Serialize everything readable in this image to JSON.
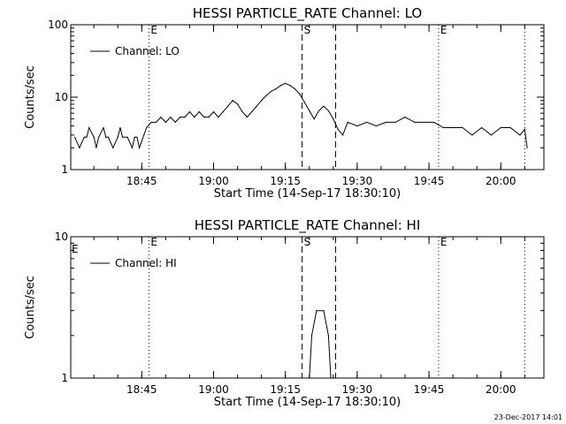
{
  "chart_data": [
    {
      "type": "line",
      "title": "HESSI PARTICLE_RATE Channel: LO",
      "xlabel": "Start Time (14-Sep-17 18:30:10)",
      "ylabel": "Counts/sec",
      "yscale": "log",
      "ylim": [
        1,
        100
      ],
      "xlim": [
        "18:30:10",
        "20:09:00"
      ],
      "xticks": [
        "18:45",
        "19:00",
        "19:15",
        "19:30",
        "19:45",
        "20:00"
      ],
      "yticks": [
        "1",
        "10",
        "100"
      ],
      "legend": "top-left",
      "series": [
        {
          "name": "Channel: LO",
          "x": [
            "18:31:00",
            "18:32:00",
            "18:33:00",
            "18:33:30",
            "18:34:00",
            "18:35:00",
            "18:35:30",
            "18:36:00",
            "18:37:00",
            "18:37:30",
            "18:38:00",
            "18:39:00",
            "18:40:00",
            "18:40:30",
            "18:41:00",
            "18:42:00",
            "18:43:00",
            "18:43:30",
            "18:44:00",
            "18:44:30",
            "18:46:00",
            "18:47:00",
            "18:48:00",
            "18:49:00",
            "18:50:00",
            "18:51:00",
            "18:52:00",
            "18:53:00",
            "18:54:00",
            "18:55:00",
            "18:56:00",
            "18:57:00",
            "18:58:00",
            "18:59:00",
            "19:00:00",
            "19:01:00",
            "19:02:00",
            "19:03:00",
            "19:04:00",
            "19:05:00",
            "19:06:00",
            "19:07:00",
            "19:08:00",
            "19:09:00",
            "19:10:00",
            "19:11:00",
            "19:12:00",
            "19:13:00",
            "19:14:00",
            "19:15:00",
            "19:16:00",
            "19:17:00",
            "19:18:00",
            "19:19:00",
            "19:20:00",
            "19:21:00",
            "19:22:00",
            "19:23:00",
            "19:24:00",
            "19:25:00",
            "19:26:00",
            "19:27:00",
            "19:28:00",
            "19:30:00",
            "19:32:00",
            "19:34:00",
            "19:36:00",
            "19:38:00",
            "19:40:00",
            "19:42:00",
            "19:44:00",
            "19:46:00",
            "19:48:00",
            "19:50:00",
            "19:52:00",
            "19:54:00",
            "19:56:00",
            "19:58:00",
            "20:00:00",
            "20:02:00",
            "20:04:00",
            "20:05:00",
            "20:05:30"
          ],
          "y": [
            2.8,
            2.0,
            2.8,
            2.8,
            3.8,
            2.8,
            2.0,
            2.8,
            3.8,
            2.8,
            2.8,
            2.0,
            2.8,
            3.8,
            2.8,
            2.8,
            2.0,
            2.8,
            2.8,
            2.0,
            3.8,
            4.5,
            4.5,
            5.3,
            4.5,
            5.3,
            4.5,
            5.3,
            5.3,
            6.3,
            5.3,
            6.3,
            5.3,
            5.3,
            6.3,
            5.3,
            6.3,
            7.5,
            9.0,
            8.0,
            6.3,
            5.3,
            6.3,
            7.5,
            9.0,
            10.5,
            12.0,
            13.0,
            14.5,
            15.5,
            14.5,
            13.0,
            11.0,
            8.5,
            6.5,
            5.0,
            6.5,
            7.5,
            6.5,
            5.0,
            3.6,
            3.0,
            4.5,
            4.0,
            4.5,
            4.0,
            4.5,
            4.5,
            5.3,
            4.5,
            4.5,
            4.5,
            3.8,
            3.8,
            3.8,
            3.0,
            3.8,
            3.0,
            3.8,
            3.8,
            3.0,
            3.6,
            2.0
          ]
        }
      ],
      "markers": [
        {
          "x": "18:46:30",
          "label": "E",
          "style": "dotted"
        },
        {
          "x": "19:18:30",
          "label": "S",
          "style": "dashed"
        },
        {
          "x": "19:25:30",
          "label": "",
          "style": "dashed"
        },
        {
          "x": "19:47:00",
          "label": "E",
          "style": "dotted"
        },
        {
          "x": "20:05:00",
          "label": "",
          "style": "dotted"
        }
      ]
    },
    {
      "type": "line",
      "title": "HESSI PARTICLE_RATE Channel: HI",
      "xlabel": "Start Time (14-Sep-17 18:30:10)",
      "ylabel": "Counts/sec",
      "yscale": "log",
      "ylim": [
        1,
        10
      ],
      "xlim": [
        "18:30:10",
        "20:09:00"
      ],
      "xticks": [
        "18:45",
        "19:00",
        "19:15",
        "19:30",
        "19:45",
        "20:00"
      ],
      "yticks": [
        "1",
        "10"
      ],
      "legend": "top-left",
      "series": [
        {
          "name": "Channel: HI",
          "x": [
            "19:20:00",
            "19:20:30",
            "19:21:30",
            "19:23:00",
            "19:24:00",
            "19:24:30"
          ],
          "y": [
            1.0,
            2.0,
            3.0,
            3.0,
            2.0,
            1.0
          ]
        }
      ],
      "markers": [
        {
          "x": "18:46:30",
          "label": "E",
          "style": "dotted"
        },
        {
          "x": "19:18:30",
          "label": "S",
          "style": "dashed"
        },
        {
          "x": "19:25:30",
          "label": "",
          "style": "dashed"
        },
        {
          "x": "19:47:00",
          "label": "E",
          "style": "dotted"
        },
        {
          "x": "20:05:00",
          "label": "",
          "style": "dotted"
        }
      ],
      "corner_label": "E"
    }
  ],
  "footer": {
    "timestamp": "23-Dec-2017 14:01"
  }
}
